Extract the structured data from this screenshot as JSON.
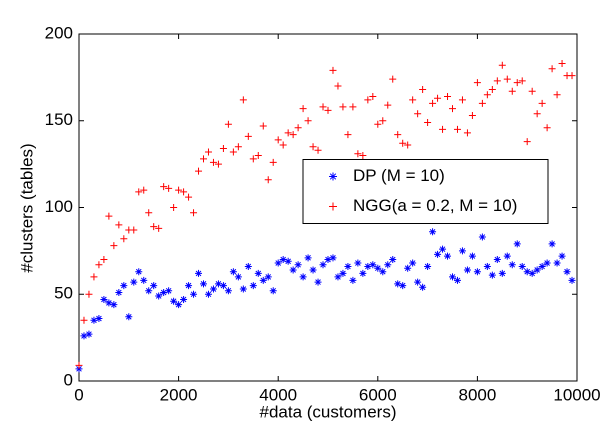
{
  "chart_data": {
    "type": "scatter",
    "xlabel": "#data (customers)",
    "ylabel": "#clusters (tables)",
    "x": [
      0,
      100,
      200,
      300,
      400,
      500,
      600,
      700,
      800,
      900,
      1000,
      1100,
      1200,
      1300,
      1400,
      1500,
      1600,
      1700,
      1800,
      1900,
      2000,
      2100,
      2200,
      2300,
      2400,
      2500,
      2600,
      2700,
      2800,
      2900,
      3000,
      3100,
      3200,
      3300,
      3400,
      3500,
      3600,
      3700,
      3800,
      3900,
      4000,
      4100,
      4200,
      4300,
      4400,
      4500,
      4600,
      4700,
      4800,
      4900,
      5000,
      5100,
      5200,
      5300,
      5400,
      5500,
      5600,
      5700,
      5800,
      5900,
      6000,
      6100,
      6200,
      6300,
      6400,
      6500,
      6600,
      6700,
      6800,
      6900,
      7000,
      7100,
      7200,
      7300,
      7400,
      7500,
      7600,
      7700,
      7800,
      7900,
      8000,
      8100,
      8200,
      8300,
      8400,
      8500,
      8600,
      8700,
      8800,
      8900,
      9000,
      9100,
      9200,
      9300,
      9400,
      9500,
      9600,
      9700,
      9800,
      9900
    ],
    "series": [
      {
        "name": "DP (M = 10)",
        "color": "#0000ff",
        "marker": "star",
        "values": [
          7,
          26,
          27,
          35,
          36,
          47,
          45,
          44,
          51,
          55,
          37,
          57,
          63,
          58,
          52,
          55,
          49,
          51,
          52,
          46,
          44,
          47,
          55,
          50,
          62,
          56,
          50,
          53,
          56,
          55,
          52,
          63,
          60,
          53,
          66,
          55,
          62,
          58,
          60,
          52,
          68,
          70,
          69,
          64,
          67,
          60,
          71,
          64,
          57,
          67,
          70,
          71,
          60,
          62,
          66,
          58,
          68,
          62,
          66,
          67,
          65,
          63,
          67,
          70,
          56,
          55,
          65,
          68,
          57,
          54,
          66,
          86,
          73,
          76,
          72,
          60,
          58,
          75,
          64,
          72,
          63,
          83,
          66,
          61,
          70,
          62,
          72,
          67,
          79,
          66,
          63,
          62,
          64,
          66,
          68,
          79,
          68,
          72,
          63,
          58
        ]
      },
      {
        "name": "NGG(a = 0.2, M = 10)",
        "color": "#ff0000",
        "marker": "plus",
        "values": [
          9,
          35,
          50,
          60,
          67,
          70,
          95,
          78,
          90,
          82,
          87,
          87,
          109,
          110,
          97,
          89,
          88,
          112,
          111,
          100,
          110,
          109,
          106,
          97,
          121,
          128,
          132,
          126,
          125,
          134,
          148,
          132,
          135,
          162,
          141,
          128,
          130,
          147,
          116,
          126,
          139,
          136,
          143,
          142,
          146,
          157,
          150,
          135,
          133,
          158,
          156,
          179,
          170,
          158,
          142,
          158,
          131,
          130,
          162,
          164,
          148,
          150,
          159,
          174,
          142,
          137,
          136,
          162,
          154,
          168,
          149,
          160,
          163,
          145,
          164,
          157,
          145,
          162,
          143,
          153,
          172,
          160,
          165,
          168,
          173,
          182,
          174,
          167,
          172,
          173,
          138,
          167,
          154,
          160,
          146,
          180,
          165,
          183,
          176,
          176
        ]
      }
    ],
    "xlim": [
      0,
      10000
    ],
    "xticks": [
      0,
      2000,
      4000,
      6000,
      8000,
      10000
    ],
    "ylim": [
      0,
      200
    ],
    "yticks": [
      0,
      50,
      100,
      150,
      200
    ],
    "legend": "east"
  }
}
